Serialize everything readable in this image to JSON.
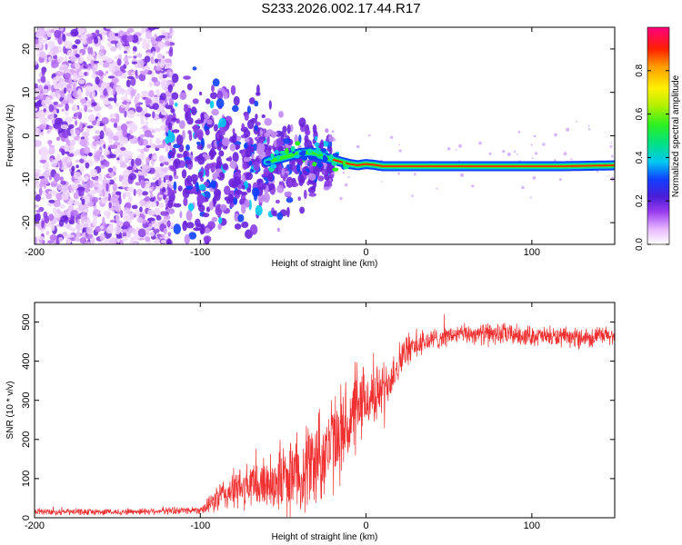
{
  "title": "S233.2026.002.17.44.R17",
  "colors": {
    "snr_line": "#f03030",
    "ridge": "#ff2000",
    "axis": "#000000"
  },
  "chart_data": [
    {
      "type": "heatmap",
      "xlabel": "Height of straight line (km)",
      "ylabel": "Frequency (Hz)",
      "xlim": [
        -200,
        150
      ],
      "ylim": [
        -25,
        25
      ],
      "xticks": [
        -200,
        -100,
        0,
        100
      ],
      "xtick_labels": [
        "-200",
        "-100",
        "0",
        "100"
      ],
      "yticks": [
        -20,
        -10,
        0,
        10,
        20
      ],
      "ytick_labels": [
        "-20",
        "-10",
        "0",
        "10",
        "20"
      ],
      "ridge": {
        "x": [
          -60,
          -50,
          -45,
          -40,
          -35,
          -30,
          -25,
          -20,
          -15,
          -10,
          -5,
          0,
          5,
          10,
          20,
          40,
          60,
          80,
          100,
          120,
          150
        ],
        "y": [
          -6,
          -5,
          -4.5,
          -4,
          -3.8,
          -4,
          -5,
          -5.5,
          -6,
          -6.5,
          -6.8,
          -6.5,
          -6.7,
          -7,
          -7,
          -7,
          -7,
          -7,
          -7,
          -7,
          -6.8
        ]
      },
      "noise_region_x": [
        -200,
        -120
      ],
      "scatter_region_x": [
        -120,
        -20
      ]
    },
    {
      "type": "colorbar",
      "label": "Normalized spectral amplitude",
      "range": [
        0.0,
        1.0
      ],
      "ticks": [
        0.0,
        0.2,
        0.4,
        0.6,
        0.8
      ],
      "tick_labels": [
        "0.0",
        "0.2",
        "0.4",
        "0.6",
        "0.8"
      ]
    },
    {
      "type": "line",
      "title": "",
      "xlabel": "Height of straight line (km)",
      "ylabel": "SNR (10 * v/v)",
      "xlim": [
        -200,
        150
      ],
      "ylim": [
        0,
        550
      ],
      "xticks": [
        -200,
        -100,
        0,
        100
      ],
      "xtick_labels": [
        "-200",
        "-100",
        "0",
        "100"
      ],
      "yticks": [
        0,
        100,
        200,
        300,
        400,
        500
      ],
      "ytick_labels": [
        "0",
        "100",
        "200",
        "300",
        "400",
        "500"
      ],
      "series": [
        {
          "name": "SNR",
          "x": [
            -200,
            -150,
            -100,
            -95,
            -90,
            -80,
            -70,
            -60,
            -50,
            -40,
            -30,
            -20,
            -15,
            -10,
            -5,
            0,
            5,
            10,
            15,
            20,
            25,
            30,
            40,
            50,
            60,
            80,
            100,
            120,
            150
          ],
          "y": [
            15,
            15,
            20,
            30,
            50,
            70,
            80,
            90,
            100,
            120,
            150,
            190,
            220,
            240,
            270,
            300,
            310,
            330,
            360,
            400,
            430,
            440,
            455,
            465,
            470,
            470,
            465,
            460,
            465
          ],
          "spread": [
            10,
            10,
            12,
            25,
            45,
            60,
            75,
            85,
            110,
            130,
            150,
            150,
            140,
            130,
            120,
            100,
            90,
            80,
            70,
            60,
            50,
            40,
            35,
            30,
            30,
            35,
            30,
            30,
            30
          ]
        }
      ]
    }
  ]
}
